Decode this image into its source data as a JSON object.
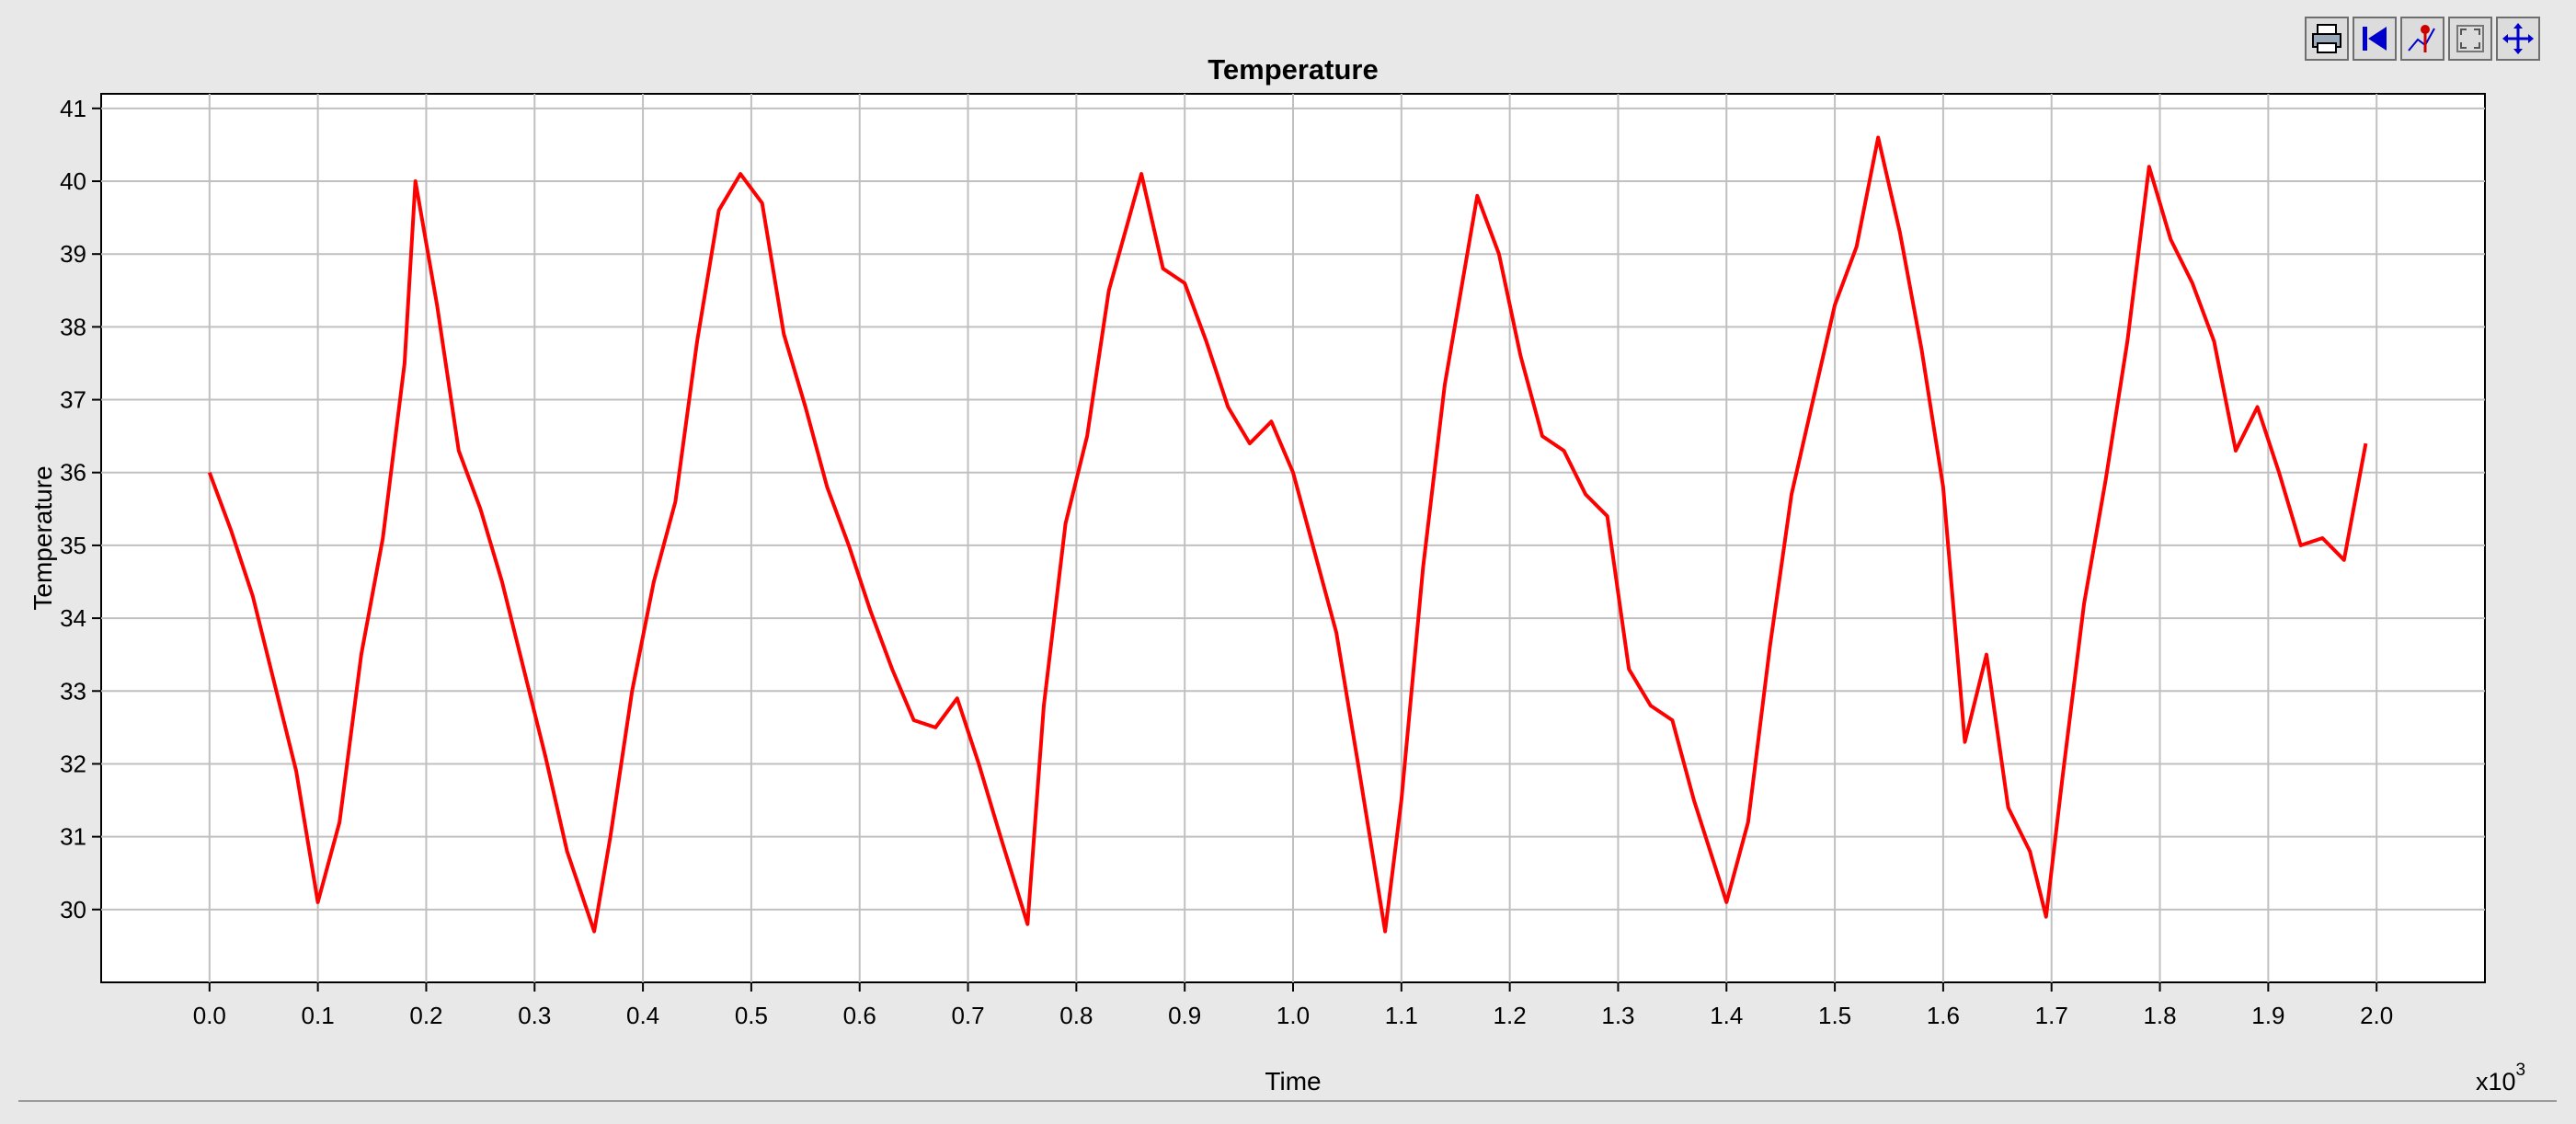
{
  "toolbar": {
    "buttons": [
      {
        "icon": "print-icon"
      },
      {
        "icon": "reset-icon"
      },
      {
        "icon": "marker-icon"
      },
      {
        "icon": "zoom-fit-icon"
      },
      {
        "icon": "pan-icon"
      }
    ]
  },
  "colors": {
    "series": "#ff0000",
    "grid": "#c0c0c0",
    "plot_background": "#ffffff",
    "window_background": "#e8e8e8"
  },
  "chart_data": {
    "type": "line",
    "title": "Temperature",
    "xlabel": "Time",
    "ylabel": "Temperature",
    "x_multiplier_label": "x10",
    "x_multiplier_exponent": "3",
    "xlim": [
      -0.1,
      2.1
    ],
    "ylim": [
      29.0,
      41.2
    ],
    "x_tick_labels": [
      "0.0",
      "0.1",
      "0.2",
      "0.3",
      "0.4",
      "0.5",
      "0.6",
      "0.7",
      "0.8",
      "0.9",
      "1.0",
      "1.1",
      "1.2",
      "1.3",
      "1.4",
      "1.5",
      "1.6",
      "1.7",
      "1.8",
      "1.9",
      "2.0"
    ],
    "y_tick_labels": [
      "30",
      "31",
      "32",
      "33",
      "34",
      "35",
      "36",
      "37",
      "38",
      "39",
      "40",
      "41"
    ],
    "grid": true,
    "legend": "none",
    "series": [
      {
        "x": [
          0.0,
          0.02,
          0.04,
          0.06,
          0.08,
          0.1,
          0.12,
          0.14,
          0.16,
          0.18,
          0.19,
          0.21,
          0.23,
          0.25,
          0.27,
          0.29,
          0.31,
          0.33,
          0.355,
          0.37,
          0.39,
          0.41,
          0.43,
          0.45,
          0.47,
          0.49,
          0.51,
          0.53,
          0.55,
          0.57,
          0.59,
          0.61,
          0.63,
          0.65,
          0.67,
          0.69,
          0.71,
          0.73,
          0.755,
          0.77,
          0.79,
          0.81,
          0.83,
          0.86,
          0.88,
          0.9,
          0.92,
          0.94,
          0.96,
          0.98,
          1.0,
          1.02,
          1.04,
          1.06,
          1.085,
          1.1,
          1.12,
          1.14,
          1.17,
          1.19,
          1.21,
          1.23,
          1.25,
          1.27,
          1.29,
          1.31,
          1.33,
          1.35,
          1.37,
          1.4,
          1.42,
          1.44,
          1.46,
          1.48,
          1.5,
          1.52,
          1.54,
          1.56,
          1.58,
          1.6,
          1.62,
          1.64,
          1.66,
          1.68,
          1.695,
          1.71,
          1.73,
          1.75,
          1.77,
          1.79,
          1.81,
          1.83,
          1.85,
          1.87,
          1.89,
          1.91,
          1.93,
          1.95,
          1.97,
          1.99
        ],
        "values": [
          36.0,
          35.2,
          34.3,
          33.1,
          31.9,
          30.1,
          31.2,
          33.5,
          35.1,
          37.5,
          40.0,
          38.3,
          36.3,
          35.5,
          34.5,
          33.3,
          32.1,
          30.8,
          29.7,
          31.0,
          33.0,
          34.5,
          35.6,
          37.8,
          39.6,
          40.1,
          39.7,
          37.9,
          36.9,
          35.8,
          35.0,
          34.1,
          33.3,
          32.6,
          32.5,
          32.9,
          32.0,
          31.0,
          29.8,
          32.8,
          35.3,
          36.5,
          38.5,
          40.1,
          38.8,
          38.6,
          37.8,
          36.9,
          36.4,
          36.7,
          36.0,
          34.9,
          33.8,
          32.0,
          29.7,
          31.5,
          34.7,
          37.2,
          39.8,
          39.0,
          37.6,
          36.5,
          36.3,
          35.7,
          35.4,
          33.3,
          32.8,
          32.6,
          31.5,
          30.1,
          31.2,
          33.6,
          35.7,
          37.0,
          38.3,
          39.1,
          40.6,
          39.3,
          37.7,
          35.8,
          32.3,
          33.5,
          31.4,
          30.8,
          29.9,
          31.8,
          34.2,
          35.9,
          37.8,
          40.2,
          39.2,
          38.6,
          37.8,
          36.3,
          36.9,
          36.0,
          35.0,
          35.1,
          34.8,
          36.4
        ]
      }
    ]
  }
}
